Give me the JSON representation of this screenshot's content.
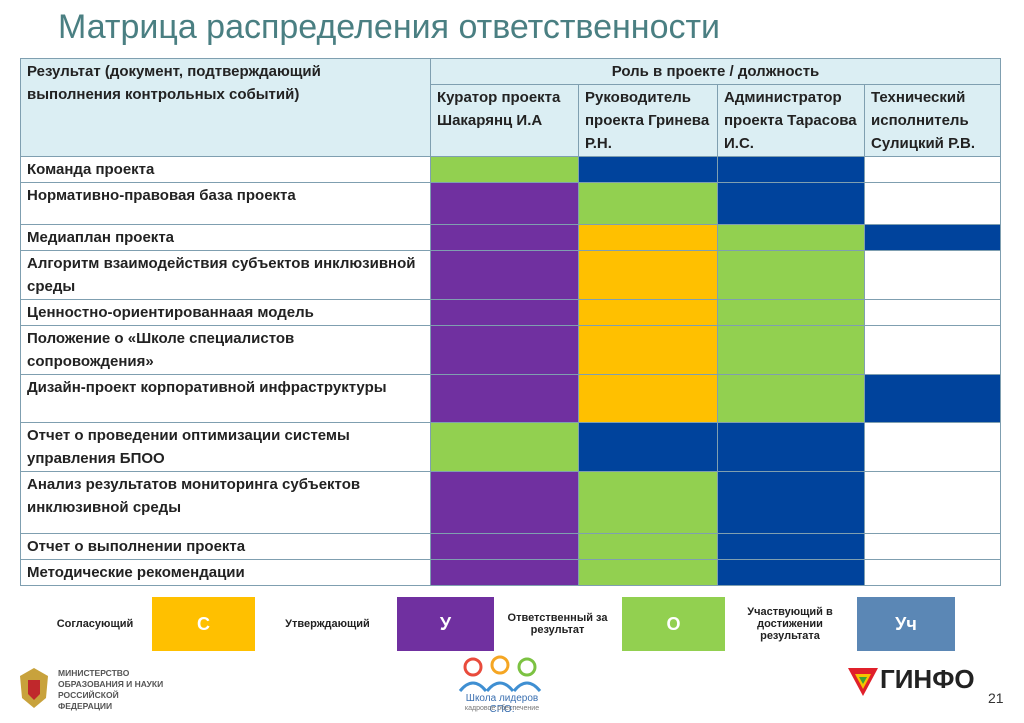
{
  "title": "Матрица распределения ответственности",
  "table": {
    "result_header": "Результат (документ, подтверждающий выполнения контрольных событий)",
    "role_header": "Роль в проекте / должность",
    "roles": [
      "Куратор проекта Шакарянц И.А",
      "Руководитель проекта Гринева Р.Н.",
      "Администратор проекта Тарасова И.С.",
      "Технический исполнитель Сулицкий Р.В."
    ],
    "rows": [
      {
        "label": "Команда проекта",
        "cells": [
          "#92d050",
          "#00439c",
          "#00439c",
          null
        ]
      },
      {
        "label": "Нормативно-правовая база проекта",
        "cells": [
          "#7030a0",
          "#92d050",
          "#00439c",
          null
        ]
      },
      {
        "label": "Медиаплан проекта",
        "cells": [
          "#7030a0",
          "#ffc000",
          "#92d050",
          "#00439c"
        ]
      },
      {
        "label": "Алгоритм взаимодействия субъектов инклюзивной среды",
        "cells": [
          "#7030a0",
          "#ffc000",
          "#92d050",
          null
        ]
      },
      {
        "label": "Ценностно-ориентированнаая модель",
        "cells": [
          "#7030a0",
          "#ffc000",
          "#92d050",
          null
        ]
      },
      {
        "label": "Положение о «Школе специалистов сопровождения»",
        "cells": [
          "#7030a0",
          "#ffc000",
          "#92d050",
          null
        ]
      },
      {
        "label": "Дизайн-проект корпоративной инфраструктуры",
        "cells": [
          "#7030a0",
          "#ffc000",
          "#92d050",
          "#00439c"
        ]
      },
      {
        "label": "Отчет о проведении оптимизации системы управления БПОО",
        "cells": [
          "#92d050",
          "#00439c",
          "#00439c",
          null
        ]
      },
      {
        "label": "Анализ результатов  мониторинга субъектов инклюзивной среды",
        "cells": [
          "#7030a0",
          "#92d050",
          "#00439c",
          null
        ]
      },
      {
        "label": "Отчет о выполнении проекта",
        "cells": [
          "#7030a0",
          "#92d050",
          "#00439c",
          null
        ]
      },
      {
        "label": "Методические рекомендации",
        "cells": [
          "#7030a0",
          "#92d050",
          "#00439c",
          null
        ]
      }
    ]
  },
  "legend": [
    {
      "label": "Согласующий",
      "code": "С",
      "color": "#ffc000"
    },
    {
      "label": "Утверждающий",
      "code": "У",
      "color": "#7030a0"
    },
    {
      "label": "Ответственный за результат",
      "code": "О",
      "color": "#92d050"
    },
    {
      "label": "Участвующий в достижении результата",
      "code": "Уч",
      "color": "#5b87b5"
    }
  ],
  "footer": {
    "ministry": "МИНИСТЕРСТВО ОБРАЗОВАНИЯ И НАУКИ РОССИЙСКОЙ ФЕДЕРАЦИИ",
    "school": "Школа лидеров СПО:",
    "school_sub": "кадровое обеспечение",
    "ginfo": "ГИНФО",
    "page": "21"
  }
}
